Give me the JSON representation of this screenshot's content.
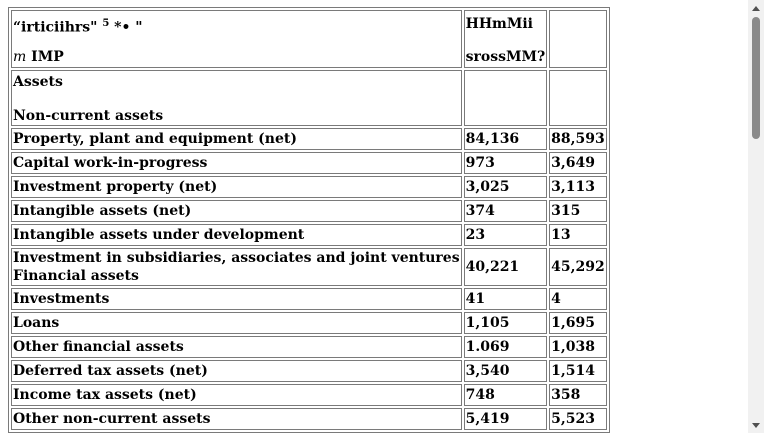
{
  "header": {
    "col1_line1": "“irticiihrs\"",
    "col1_sup": "5",
    "col1_tail": " *• \"",
    "col1_line2_em": "m",
    "col1_line2": " IMP",
    "col2_line1": "HHmMii",
    "col2_line2": "srossMM?",
    "col3": ""
  },
  "section": {
    "title": "Assets",
    "subtitle": "Non-current assets"
  },
  "rows": [
    {
      "label": "Property, plant and equipment (net)",
      "v1": "84,136",
      "v2": "88,593"
    },
    {
      "label": "Capital work-in-progress",
      "v1": "973",
      "v2": "3,649"
    },
    {
      "label": "Investment property (net)",
      "v1": "3,025",
      "v2": "3,113"
    },
    {
      "label": "Intangible assets (net)",
      "v1": "374",
      "v2": "315"
    },
    {
      "label": "Intangible assets under development",
      "v1": "23",
      "v2": "13"
    },
    {
      "label": "Investment in subsidiaries, associates and joint ventures",
      "label2": "Financial assets",
      "v1": "40,221",
      "v2": "45,292"
    },
    {
      "label": "Investments",
      "v1": "41",
      "v2": "4"
    },
    {
      "label": "Loans",
      "v1": "1,105",
      "v2": "1,695"
    },
    {
      "label": "Other financial assets",
      "v1": "1.069",
      "v2": "1,038"
    },
    {
      "label": "Deferred tax assets (net)",
      "v1": "3,540",
      "v2": "1,514"
    },
    {
      "label": "Income tax assets (net)",
      "v1": "748",
      "v2": "358"
    },
    {
      "label": "Other non-current assets",
      "v1": "5,419",
      "v2": "5,523"
    }
  ]
}
